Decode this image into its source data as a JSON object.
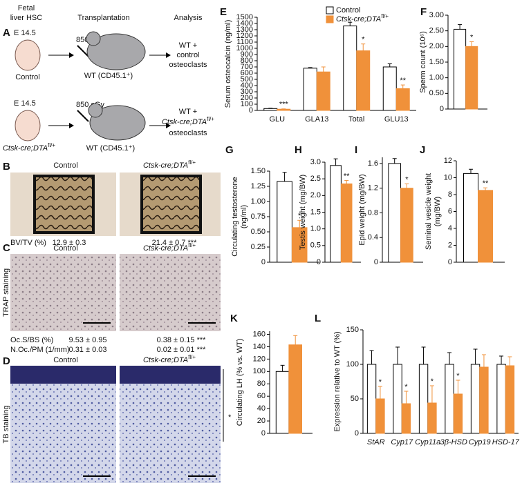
{
  "panels": {
    "A": {
      "letter": "A",
      "col1": [
        "Fetal",
        "liver HSC"
      ],
      "col2": "Transplantation",
      "col3": "Analysis",
      "row1": {
        "age": "E 14.5",
        "dose": "850 cGy",
        "donor": "Control",
        "host": "WT (CD45.1⁺)",
        "result": [
          "WT +",
          "control",
          "osteoclasts"
        ]
      },
      "row2": {
        "age": "E 14.5",
        "dose": "850 cGy",
        "donor": {
          "text": "Ctsk-cre;DTA",
          "sup": "fl/+"
        },
        "host": "WT (CD45.1⁺)",
        "result": [
          "WT +",
          {
            "text": "Ctsk-cre;DTA",
            "sup": "fl/+"
          },
          "osteoclasts"
        ]
      }
    },
    "B": {
      "letter": "B",
      "control": "Control",
      "mutant": {
        "text": "Ctsk-cre;DTA",
        "sup": "fl/+"
      },
      "measure": "BV/TV (%)",
      "control_value": "12.9 ± 0.3",
      "mutant_value": "21.4 ± 0.7 ***"
    },
    "C": {
      "letter": "C",
      "control": "Control",
      "mutant": {
        "text": "Ctsk-cre;DTA",
        "sup": "fl/+"
      },
      "stain": "TRAP staining",
      "measures": [
        "Oc.S/BS (%)",
        "N.Oc./PM (1/mm)"
      ],
      "control_values": [
        "9.53 ± 0.95",
        "0.31 ± 0.03"
      ],
      "mutant_values": [
        "0.38 ± 0.15 ***",
        "0.02 ± 0.01 ***"
      ]
    },
    "D": {
      "letter": "D",
      "control": "Control",
      "mutant": {
        "text": "Ctsk-cre;DTA",
        "sup": "fl/+"
      },
      "stain": "TB staining",
      "mark": "*"
    }
  },
  "chart_data": [
    {
      "type": "bar",
      "letter": "E",
      "y_label": "Serum osteocalcin (ng/ml)",
      "categories": [
        "GLU",
        "GLA13",
        "Total",
        "GLU13"
      ],
      "series": [
        {
          "name": "Control",
          "color": "#ffffff",
          "values": [
            30,
            680,
            1360,
            700
          ],
          "errors": [
            5,
            10,
            60,
            50
          ]
        },
        {
          "name": "Ctsk-cre;DTA",
          "name_sup": "fl/+",
          "color": "#f0913a",
          "values": [
            20,
            620,
            960,
            350
          ],
          "errors": [
            5,
            80,
            110,
            60
          ]
        }
      ],
      "annotations": [
        "***",
        null,
        "*",
        "**"
      ],
      "legend": "upper right",
      "ylim": [
        0,
        1500
      ],
      "yticks": [
        0,
        100,
        200,
        300,
        400,
        500,
        600,
        700,
        800,
        900,
        1000,
        1100,
        1200,
        1300,
        1400,
        1500
      ]
    },
    {
      "type": "bar",
      "letter": "F",
      "y_label": "Sperm count (10⁶)",
      "series": [
        {
          "color": "#ffffff",
          "values": [
            2.55
          ],
          "errors": [
            0.15
          ]
        },
        {
          "color": "#f0913a",
          "values": [
            2.0
          ],
          "errors": [
            0.15
          ]
        }
      ],
      "annotations": [
        "*"
      ],
      "ylim": [
        0,
        3.0
      ],
      "yticks": [
        0,
        {
          "value": 0.5,
          "label": "0.50"
        },
        {
          "value": 1,
          "label": "1.00"
        },
        {
          "value": 1.5,
          "label": "1.50"
        },
        {
          "value": 2,
          "label": "2.00"
        },
        {
          "value": 2.5,
          "label": "2.50"
        },
        {
          "value": 3,
          "label": "3.00"
        }
      ]
    },
    {
      "type": "bar",
      "letter": "G",
      "y_label": [
        "Circulating testosterone",
        "(ng/ml)"
      ],
      "series": [
        {
          "color": "#ffffff",
          "values": [
            1.33
          ],
          "errors": [
            0.15
          ]
        },
        {
          "color": "#f0913a",
          "values": [
            0.57
          ],
          "errors": [
            0.12
          ]
        }
      ],
      "annotations": [
        "*"
      ],
      "ylim": [
        0,
        1.5
      ],
      "yticks": [
        0,
        0.25,
        {
          "value": 0.5,
          "label": "0.50"
        },
        0.75,
        {
          "value": 1,
          "label": "1.00"
        },
        1.25,
        {
          "value": 1.5,
          "label": "1.50"
        }
      ]
    },
    {
      "type": "bar",
      "letter": "H",
      "y_label": "Testis weight (mg/BW)",
      "series": [
        {
          "color": "#ffffff",
          "values": [
            2.9
          ],
          "errors": [
            0.2
          ]
        },
        {
          "color": "#f0913a",
          "values": [
            2.35
          ],
          "errors": [
            0.1
          ]
        }
      ],
      "annotations": [
        "**"
      ],
      "ylim": [
        0,
        3.0
      ],
      "yticks": [
        0,
        0.5,
        {
          "value": 1,
          "label": "1.0"
        },
        1.5,
        {
          "value": 2,
          "label": "2.0"
        },
        2.5,
        {
          "value": 3,
          "label": "3.0"
        }
      ]
    },
    {
      "type": "bar",
      "letter": "I",
      "y_label": "Epid weight (mg/BW)",
      "series": [
        {
          "color": "#ffffff",
          "values": [
            1.6
          ],
          "errors": [
            0.08
          ]
        },
        {
          "color": "#f0913a",
          "values": [
            1.2
          ],
          "errors": [
            0.07
          ]
        }
      ],
      "annotations": [
        "*"
      ],
      "ylim": [
        0,
        1.7
      ],
      "yticks": [
        0,
        0.4,
        0.8,
        1.2,
        1.6
      ]
    },
    {
      "type": "bar",
      "letter": "J",
      "y_label": [
        "Seminal vesicle weight",
        "(mg/BW)"
      ],
      "series": [
        {
          "color": "#ffffff",
          "values": [
            10.5
          ],
          "errors": [
            0.5
          ]
        },
        {
          "color": "#f0913a",
          "values": [
            8.5
          ],
          "errors": [
            0.3
          ]
        }
      ],
      "annotations": [
        "**"
      ],
      "ylim": [
        0,
        12
      ],
      "yticks": [
        0,
        2,
        4,
        6,
        8,
        10,
        12
      ]
    },
    {
      "type": "bar",
      "letter": "K",
      "y_label": "Circulating LH (% vs. WT)",
      "series": [
        {
          "color": "#ffffff",
          "values": [
            100
          ],
          "errors": [
            10
          ]
        },
        {
          "color": "#f0913a",
          "values": [
            143
          ],
          "errors": [
            15
          ]
        }
      ],
      "ylim": [
        0,
        165
      ],
      "yticks": [
        0,
        20,
        40,
        60,
        80,
        100,
        120,
        140,
        160
      ]
    },
    {
      "type": "bar",
      "letter": "L",
      "y_label": "Expression relative to WT (%)",
      "categories": [
        "StAR",
        "Cyp17",
        "Cyp11a",
        "3β-HSD",
        "Cyp19",
        "HSD-17"
      ],
      "series": [
        {
          "color": "#ffffff",
          "values": [
            100,
            100,
            100,
            100,
            100,
            100
          ],
          "errors": [
            20,
            25,
            25,
            17,
            22,
            12
          ]
        },
        {
          "color": "#f0913a",
          "values": [
            50,
            43,
            44,
            57,
            96,
            98
          ],
          "errors": [
            18,
            18,
            25,
            20,
            18,
            13
          ]
        }
      ],
      "annotations": [
        "*",
        "*",
        "*",
        "*",
        null,
        null
      ],
      "ylim": [
        0,
        150
      ],
      "yticks": [
        0,
        50,
        100,
        150
      ]
    }
  ]
}
